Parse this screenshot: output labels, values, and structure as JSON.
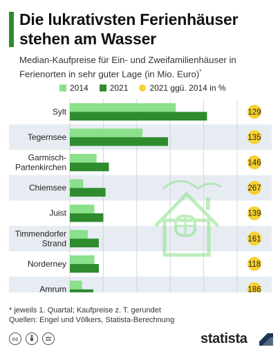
{
  "header": {
    "title": "Die lukrativsten Ferienhäuser stehen am Wasser",
    "subtitle": "Median-Kaufpreise für Ein- und Zweifamilienhäuser in Ferienorten in sehr guter Lage (in Mio. Euro)",
    "subtitle_mark": "*"
  },
  "colors": {
    "accent": "#2e8b2e",
    "series_2014": "#8be08b",
    "series_2021": "#2e8b2e",
    "growth_dot": "#f5d130",
    "row_band": "#e6ecf1"
  },
  "chart_data": {
    "type": "bar",
    "orientation": "horizontal",
    "categories": [
      "Sylt",
      "Tegernsee",
      "Garmisch-Partenkirchen",
      "Chiemsee",
      "Juist",
      "Timmendorfer Strand",
      "Norderney",
      "Amrum"
    ],
    "category_lines": [
      [
        "Sylt"
      ],
      [
        "Tegernsee"
      ],
      [
        "Garmisch-",
        "Partenkirchen"
      ],
      [
        "Chiemsee"
      ],
      [
        "Juist"
      ],
      [
        "Timmendorfer",
        "Strand"
      ],
      [
        "Norderney"
      ],
      [
        "Amrum"
      ]
    ],
    "series": [
      {
        "name": "2014",
        "values": [
          9.5,
          6.5,
          2.4,
          1.2,
          2.2,
          1.6,
          2.2,
          1.1
        ]
      },
      {
        "name": "2021",
        "values": [
          12.3,
          8.8,
          3.5,
          3.2,
          3.0,
          2.6,
          2.6,
          2.1
        ]
      }
    ],
    "growth": {
      "name": "2021 ggü. 2014 in %",
      "values": [
        129,
        135,
        146,
        267,
        139,
        161,
        118,
        186
      ]
    },
    "xlim": [
      0,
      15
    ],
    "xticks": [
      0,
      3,
      6,
      9,
      12,
      15
    ],
    "legend": "top"
  },
  "footer": {
    "note": "* jeweils 1. Quartal; Kaufpreise z. T. gerundet",
    "source": "Quellen: Engel und Völkers, Statista-Berechnung",
    "brand": "statista",
    "license_icons": [
      "cc-icon",
      "by-icon",
      "nd-icon"
    ]
  }
}
